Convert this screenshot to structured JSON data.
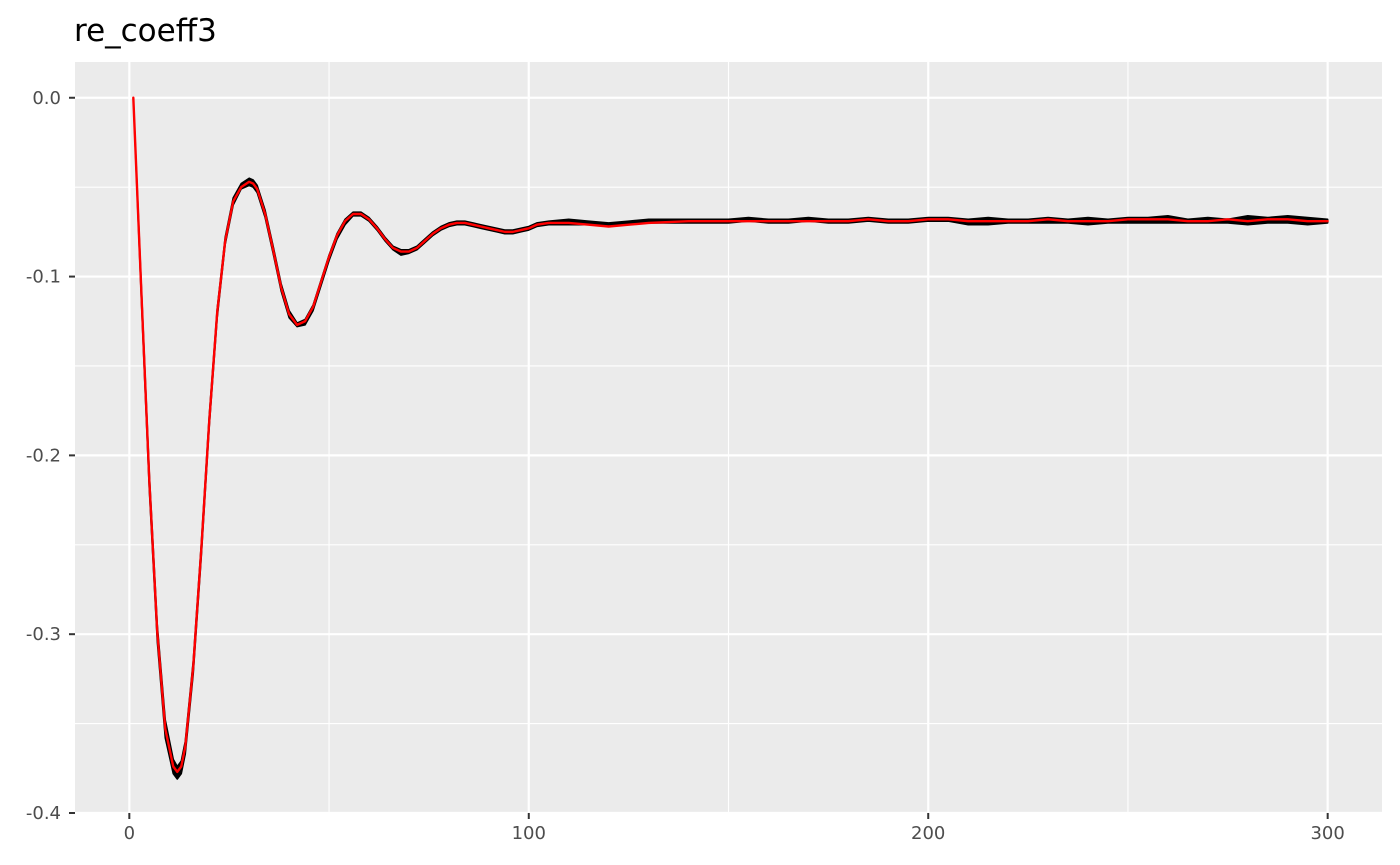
{
  "chart_data": {
    "type": "line",
    "title": "re_coeff3",
    "xlabel": "",
    "ylabel": "",
    "xlim": [
      -13.6,
      313.6
    ],
    "ylim": [
      -0.4,
      0.02
    ],
    "x_ticks": [
      0,
      100,
      200,
      300
    ],
    "x_tick_labels": [
      "0",
      "100",
      "200",
      "300"
    ],
    "y_ticks": [
      0.0,
      -0.1,
      -0.2,
      -0.3,
      -0.4
    ],
    "y_tick_labels": [
      "0.0",
      "-0.1",
      "-0.2",
      "-0.3",
      "-0.4"
    ],
    "x_minor_ticks": [
      50,
      150,
      250
    ],
    "y_minor_ticks": [
      -0.05,
      -0.15,
      -0.25,
      -0.35
    ],
    "grid": true,
    "legend": "none",
    "colors": {
      "panel_background": "#ebebeb",
      "grid": "#ffffff",
      "band": "#000000",
      "fit_line": "#ff0000",
      "tick_label": "#4d4d4d",
      "axis_tick": "#333333"
    },
    "series": [
      {
        "role": "band",
        "color": "#000000",
        "x": [
          1,
          3,
          5,
          7,
          9,
          11,
          12,
          13,
          14,
          16,
          18,
          20,
          22,
          24,
          26,
          28,
          30,
          31,
          32,
          34,
          36,
          38,
          40,
          42,
          44,
          46,
          48,
          50,
          52,
          54,
          56,
          58,
          60,
          62,
          64,
          66,
          68,
          70,
          72,
          74,
          76,
          78,
          80,
          82,
          84,
          86,
          88,
          90,
          92,
          94,
          96,
          98,
          100,
          102,
          105,
          110,
          115,
          120,
          125,
          130,
          140,
          150,
          155,
          160,
          165,
          170,
          175,
          180,
          185,
          190,
          195,
          200,
          205,
          210,
          215,
          220,
          225,
          230,
          235,
          240,
          245,
          250,
          255,
          260,
          265,
          270,
          275,
          280,
          285,
          290,
          295,
          300
        ],
        "upper": [
          0.0,
          -0.105,
          -0.21,
          -0.295,
          -0.348,
          -0.37,
          -0.374,
          -0.371,
          -0.36,
          -0.315,
          -0.25,
          -0.178,
          -0.118,
          -0.078,
          -0.056,
          -0.048,
          -0.045,
          -0.046,
          -0.049,
          -0.063,
          -0.083,
          -0.104,
          -0.119,
          -0.126,
          -0.124,
          -0.116,
          -0.102,
          -0.088,
          -0.076,
          -0.068,
          -0.064,
          -0.064,
          -0.067,
          -0.072,
          -0.078,
          -0.083,
          -0.085,
          -0.085,
          -0.083,
          -0.079,
          -0.075,
          -0.072,
          -0.07,
          -0.069,
          -0.069,
          -0.07,
          -0.071,
          -0.072,
          -0.073,
          -0.074,
          -0.074,
          -0.073,
          -0.072,
          -0.07,
          -0.069,
          -0.068,
          -0.069,
          -0.07,
          -0.069,
          -0.068,
          -0.068,
          -0.068,
          -0.067,
          -0.068,
          -0.068,
          -0.067,
          -0.068,
          -0.068,
          -0.067,
          -0.068,
          -0.068,
          -0.067,
          -0.067,
          -0.068,
          -0.067,
          -0.068,
          -0.068,
          -0.067,
          -0.068,
          -0.067,
          -0.068,
          -0.067,
          -0.067,
          -0.066,
          -0.068,
          -0.067,
          -0.068,
          -0.066,
          -0.067,
          -0.066,
          -0.067,
          -0.068
        ],
        "lower": [
          0.0,
          -0.112,
          -0.219,
          -0.304,
          -0.358,
          -0.378,
          -0.381,
          -0.378,
          -0.367,
          -0.322,
          -0.257,
          -0.184,
          -0.123,
          -0.082,
          -0.06,
          -0.051,
          -0.049,
          -0.05,
          -0.053,
          -0.067,
          -0.087,
          -0.108,
          -0.123,
          -0.128,
          -0.127,
          -0.119,
          -0.105,
          -0.091,
          -0.079,
          -0.071,
          -0.066,
          -0.066,
          -0.069,
          -0.074,
          -0.08,
          -0.085,
          -0.088,
          -0.087,
          -0.085,
          -0.081,
          -0.077,
          -0.074,
          -0.072,
          -0.071,
          -0.071,
          -0.072,
          -0.073,
          -0.074,
          -0.075,
          -0.076,
          -0.076,
          -0.075,
          -0.074,
          -0.072,
          -0.071,
          -0.071,
          -0.071,
          -0.072,
          -0.071,
          -0.07,
          -0.07,
          -0.07,
          -0.069,
          -0.07,
          -0.07,
          -0.069,
          -0.07,
          -0.07,
          -0.069,
          -0.07,
          -0.07,
          -0.069,
          -0.069,
          -0.071,
          -0.071,
          -0.07,
          -0.07,
          -0.07,
          -0.07,
          -0.071,
          -0.07,
          -0.07,
          -0.07,
          -0.07,
          -0.07,
          -0.07,
          -0.07,
          -0.071,
          -0.07,
          -0.07,
          -0.071,
          -0.07
        ]
      },
      {
        "role": "line",
        "color": "#ff0000",
        "x": [
          1,
          3,
          5,
          7,
          9,
          11,
          12,
          13,
          14,
          16,
          18,
          20,
          22,
          24,
          26,
          28,
          30,
          31,
          32,
          34,
          36,
          38,
          40,
          42,
          44,
          46,
          48,
          50,
          52,
          54,
          56,
          58,
          60,
          62,
          64,
          66,
          68,
          70,
          72,
          74,
          76,
          78,
          80,
          82,
          84,
          86,
          88,
          90,
          92,
          94,
          96,
          98,
          100,
          102,
          105,
          110,
          115,
          120,
          125,
          130,
          140,
          150,
          155,
          160,
          165,
          170,
          175,
          180,
          185,
          190,
          195,
          200,
          205,
          210,
          215,
          220,
          225,
          230,
          235,
          240,
          245,
          250,
          255,
          260,
          265,
          270,
          275,
          280,
          285,
          290,
          295,
          300
        ],
        "y": [
          0.0,
          -0.108,
          -0.214,
          -0.299,
          -0.353,
          -0.374,
          -0.377,
          -0.374,
          -0.363,
          -0.318,
          -0.253,
          -0.181,
          -0.12,
          -0.08,
          -0.058,
          -0.05,
          -0.047,
          -0.048,
          -0.051,
          -0.065,
          -0.085,
          -0.106,
          -0.121,
          -0.127,
          -0.125,
          -0.117,
          -0.103,
          -0.089,
          -0.077,
          -0.069,
          -0.065,
          -0.065,
          -0.068,
          -0.073,
          -0.079,
          -0.084,
          -0.086,
          -0.086,
          -0.084,
          -0.08,
          -0.076,
          -0.073,
          -0.071,
          -0.07,
          -0.07,
          -0.071,
          -0.072,
          -0.073,
          -0.074,
          -0.075,
          -0.075,
          -0.074,
          -0.073,
          -0.071,
          -0.07,
          -0.07,
          -0.071,
          -0.072,
          -0.071,
          -0.07,
          -0.069,
          -0.069,
          -0.069,
          -0.069,
          -0.069,
          -0.069,
          -0.069,
          -0.069,
          -0.068,
          -0.069,
          -0.069,
          -0.068,
          -0.068,
          -0.069,
          -0.069,
          -0.069,
          -0.069,
          -0.068,
          -0.069,
          -0.069,
          -0.069,
          -0.068,
          -0.068,
          -0.068,
          -0.069,
          -0.069,
          -0.068,
          -0.069,
          -0.068,
          -0.068,
          -0.069,
          -0.069
        ]
      }
    ]
  }
}
